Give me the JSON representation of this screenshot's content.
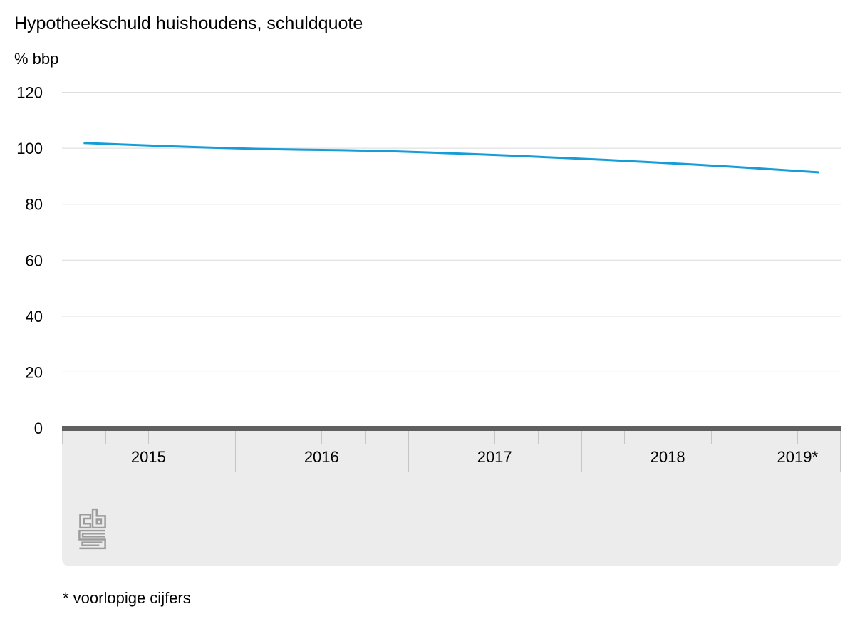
{
  "title": "Hypotheekschuld huishoudens, schuldquote",
  "unit_label": "% bbp",
  "footnote": "* voorlopige cijfers",
  "logo": {
    "name": "cbs-logo"
  },
  "colors": {
    "line": "#149dd8",
    "gridline": "#d9d9d9",
    "axis_bar": "#606060",
    "band": "#ececec",
    "tick": "#c6c6c6",
    "text": "#000000",
    "logo": "#9c9c9c"
  },
  "chart_data": {
    "type": "line",
    "title": "Hypotheekschuld huishoudens, schuldquote",
    "ylabel": "% bbp",
    "xlabel": "",
    "grid": "horizontal",
    "legend": "none",
    "ylim": [
      0,
      122
    ],
    "y_ticks": [
      0,
      20,
      40,
      60,
      80,
      100,
      120
    ],
    "x_year_labels": [
      "2015",
      "2016",
      "2017",
      "2018",
      "2019*"
    ],
    "quarters_per_year": [
      4,
      4,
      4,
      4,
      2
    ],
    "series": [
      {
        "name": "Hypotheekschuld huishoudens, schuldquote (% bbp)",
        "x": [
          "2015 Q1",
          "2015 Q2",
          "2015 Q3",
          "2015 Q4",
          "2016 Q1",
          "2016 Q2",
          "2016 Q3",
          "2016 Q4",
          "2017 Q1",
          "2017 Q2",
          "2017 Q3",
          "2017 Q4",
          "2018 Q1",
          "2018 Q2",
          "2018 Q3",
          "2018 Q4",
          "2019 Q1",
          "2019 Q2"
        ],
        "values": [
          101.9,
          101.3,
          100.7,
          100.2,
          99.8,
          99.5,
          99.3,
          99.0,
          98.5,
          97.9,
          97.3,
          96.6,
          95.9,
          95.1,
          94.3,
          93.4,
          92.4,
          91.4
        ]
      }
    ]
  }
}
